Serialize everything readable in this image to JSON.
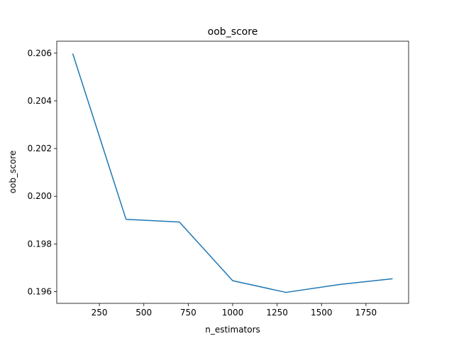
{
  "chart_data": {
    "type": "line",
    "title": "oob_score",
    "xlabel": "n_estimators",
    "ylabel": "oob_score",
    "grid": false,
    "legend": "none",
    "xlim": [
      10,
      1990
    ],
    "ylim": [
      0.19551,
      0.2065
    ],
    "x_ticks": [
      250,
      500,
      750,
      1000,
      1250,
      1500,
      1750
    ],
    "x_tick_labels": [
      "250",
      "500",
      "750",
      "1000",
      "1250",
      "1500",
      "1750"
    ],
    "y_ticks": [
      0.196,
      0.198,
      0.2,
      0.202,
      0.204,
      0.206
    ],
    "y_tick_labels": [
      "0.196",
      "0.198",
      "0.200",
      "0.202",
      "0.204",
      "0.206"
    ],
    "series": [
      {
        "color": "#1f77b4",
        "x": [
          100,
          400,
          700,
          1000,
          1300,
          1600,
          1900
        ],
        "y": [
          0.20598,
          0.19903,
          0.19892,
          0.19646,
          0.19597,
          0.1963,
          0.19654
        ]
      }
    ]
  }
}
